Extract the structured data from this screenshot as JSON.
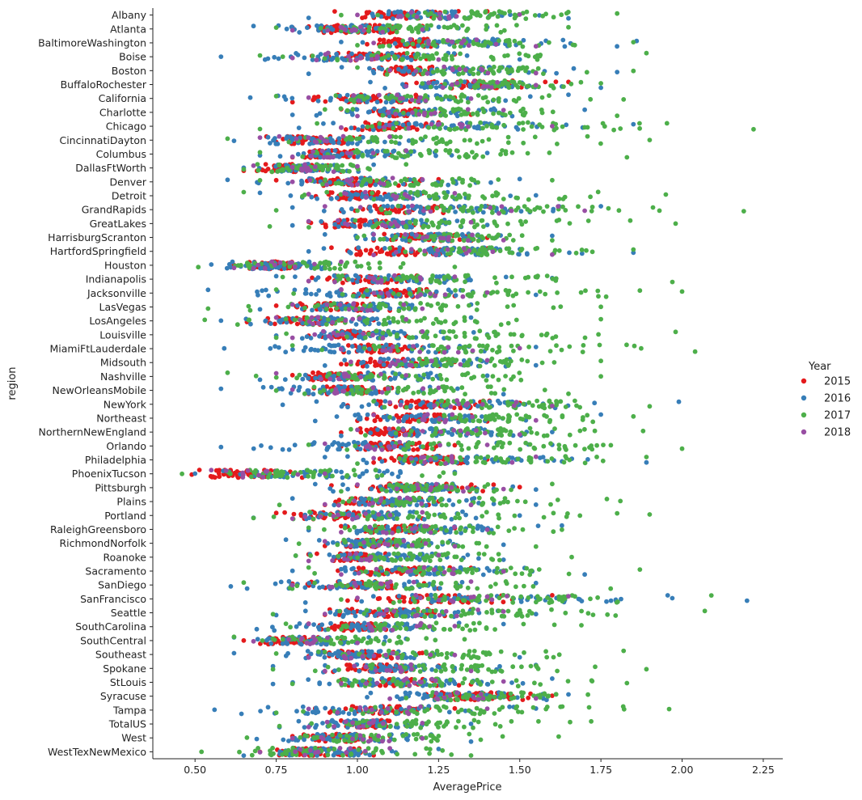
{
  "chart_data": {
    "type": "scatter",
    "subtype": "strip",
    "xlabel": "AveragePrice",
    "ylabel": "region",
    "xlim": [
      0.37,
      2.31
    ],
    "xticks": [
      "0.50",
      "0.75",
      "1.00",
      "1.25",
      "1.50",
      "1.75",
      "2.00",
      "2.25"
    ],
    "grid": false,
    "legend": {
      "title": "Year",
      "placement": "right",
      "entries": [
        {
          "label": "2015",
          "color": "#e41a1c"
        },
        {
          "label": "2016",
          "color": "#377eb8"
        },
        {
          "label": "2017",
          "color": "#4daf4a"
        },
        {
          "label": "2018",
          "color": "#984ea3"
        }
      ]
    },
    "categories": [
      "Albany",
      "Atlanta",
      "BaltimoreWashington",
      "Boise",
      "Boston",
      "BuffaloRochester",
      "California",
      "Charlotte",
      "Chicago",
      "CincinnatiDayton",
      "Columbus",
      "DallasFtWorth",
      "Denver",
      "Detroit",
      "GrandRapids",
      "GreatLakes",
      "HarrisburgScranton",
      "HartfordSpringfield",
      "Houston",
      "Indianapolis",
      "Jacksonville",
      "LasVegas",
      "LosAngeles",
      "Louisville",
      "MiamiFtLauderdale",
      "Midsouth",
      "Nashville",
      "NewOrleansMobile",
      "NewYork",
      "Northeast",
      "NorthernNewEngland",
      "Orlando",
      "Philadelphia",
      "PhoenixTucson",
      "Pittsburgh",
      "Plains",
      "Portland",
      "RaleighGreensboro",
      "RichmondNorfolk",
      "Roanoke",
      "Sacramento",
      "SanDiego",
      "SanFrancisco",
      "Seattle",
      "SouthCarolina",
      "SouthCentral",
      "Southeast",
      "Spokane",
      "StLouis",
      "Syracuse",
      "Tampa",
      "TotalUS",
      "West",
      "WestTexNewMexico"
    ],
    "ranges": [
      {
        "region": "Albany",
        "2015": [
          0.93,
          1.4
        ],
        "2016": [
          0.85,
          1.65
        ],
        "2017": [
          0.95,
          1.8
        ],
        "2018": [
          1.0,
          1.5
        ]
      },
      {
        "region": "Atlanta",
        "2015": [
          0.8,
          1.2
        ],
        "2016": [
          0.68,
          1.4
        ],
        "2017": [
          0.75,
          1.65
        ],
        "2018": [
          0.8,
          1.2
        ]
      },
      {
        "region": "BaltimoreWashington",
        "2015": [
          1.03,
          1.3
        ],
        "2016": [
          0.95,
          1.86
        ],
        "2017": [
          1.0,
          1.85
        ],
        "2018": [
          1.05,
          1.55
        ]
      },
      {
        "region": "Boise",
        "2015": [
          0.86,
          1.3
        ],
        "2016": [
          0.58,
          1.5
        ],
        "2017": [
          0.7,
          1.89
        ],
        "2018": [
          0.8,
          1.25
        ]
      },
      {
        "region": "Boston",
        "2015": [
          1.05,
          1.3
        ],
        "2016": [
          0.85,
          1.8
        ],
        "2017": [
          1.0,
          1.85
        ],
        "2018": [
          1.1,
          1.55
        ]
      },
      {
        "region": "BuffaloRochester",
        "2015": [
          1.15,
          1.65
        ],
        "2016": [
          1.04,
          1.75
        ],
        "2017": [
          1.2,
          1.75
        ],
        "2018": [
          1.15,
          1.55
        ]
      },
      {
        "region": "California",
        "2015": [
          0.8,
          1.3
        ],
        "2016": [
          0.67,
          1.65
        ],
        "2017": [
          0.75,
          1.82
        ],
        "2018": [
          0.85,
          1.35
        ]
      },
      {
        "region": "Charlotte",
        "2015": [
          0.95,
          1.35
        ],
        "2016": [
          0.8,
          1.7
        ],
        "2017": [
          0.9,
          1.8
        ],
        "2018": [
          1.0,
          1.45
        ]
      },
      {
        "region": "Chicago",
        "2015": [
          0.95,
          1.25
        ],
        "2016": [
          0.82,
          1.85
        ],
        "2017": [
          0.7,
          2.22
        ],
        "2018": [
          0.95,
          1.6
        ]
      },
      {
        "region": "CincinnatiDayton",
        "2015": [
          0.72,
          1.1
        ],
        "2016": [
          0.62,
          1.2
        ],
        "2017": [
          0.6,
          1.9
        ],
        "2018": [
          0.7,
          1.1
        ]
      },
      {
        "region": "Columbus",
        "2015": [
          0.8,
          1.1
        ],
        "2016": [
          0.7,
          1.4
        ],
        "2017": [
          0.7,
          1.83
        ],
        "2018": [
          0.8,
          1.15
        ]
      },
      {
        "region": "DallasFtWorth",
        "2015": [
          0.65,
          0.95
        ],
        "2016": [
          0.65,
          1.05
        ],
        "2017": [
          0.65,
          1.15
        ],
        "2018": [
          0.68,
          1.0
        ]
      },
      {
        "region": "Denver",
        "2015": [
          0.75,
          1.25
        ],
        "2016": [
          0.6,
          1.5
        ],
        "2017": [
          0.7,
          1.6
        ],
        "2018": [
          0.8,
          1.2
        ]
      },
      {
        "region": "Detroit",
        "2015": [
          0.85,
          1.2
        ],
        "2016": [
          0.7,
          1.55
        ],
        "2017": [
          0.65,
          1.95
        ],
        "2018": [
          0.85,
          1.3
        ]
      },
      {
        "region": "GrandRapids",
        "2015": [
          0.95,
          1.4
        ],
        "2016": [
          0.8,
          1.75
        ],
        "2017": [
          0.75,
          2.19
        ],
        "2018": [
          0.9,
          1.7
        ]
      },
      {
        "region": "GreatLakes",
        "2015": [
          0.85,
          1.2
        ],
        "2016": [
          0.8,
          1.4
        ],
        "2017": [
          0.73,
          1.98
        ],
        "2018": [
          0.85,
          1.35
        ]
      },
      {
        "region": "HarrisburgScranton",
        "2015": [
          1.05,
          1.4
        ],
        "2016": [
          0.9,
          1.6
        ],
        "2017": [
          1.0,
          1.6
        ],
        "2018": [
          1.05,
          1.45
        ]
      },
      {
        "region": "HartfordSpringfield",
        "2015": [
          0.92,
          1.4
        ],
        "2016": [
          0.85,
          1.85
        ],
        "2017": [
          1.1,
          1.85
        ],
        "2018": [
          1.05,
          1.6
        ]
      },
      {
        "region": "Houston",
        "2015": [
          0.62,
          0.9
        ],
        "2016": [
          0.55,
          1.0
        ],
        "2017": [
          0.51,
          1.3
        ],
        "2018": [
          0.62,
          0.95
        ]
      },
      {
        "region": "Indianapolis",
        "2015": [
          0.85,
          1.25
        ],
        "2016": [
          0.75,
          1.6
        ],
        "2017": [
          0.77,
          1.97
        ],
        "2018": [
          0.85,
          1.3
        ]
      },
      {
        "region": "Jacksonville",
        "2015": [
          0.95,
          1.3
        ],
        "2016": [
          0.54,
          1.55
        ],
        "2017": [
          0.75,
          2.0
        ],
        "2018": [
          0.95,
          1.4
        ]
      },
      {
        "region": "LasVegas",
        "2015": [
          0.75,
          1.1
        ],
        "2016": [
          0.7,
          1.35
        ],
        "2017": [
          0.54,
          1.75
        ],
        "2018": [
          0.8,
          1.2
        ]
      },
      {
        "region": "LosAngeles",
        "2015": [
          0.66,
          1.05
        ],
        "2016": [
          0.58,
          1.35
        ],
        "2017": [
          0.53,
          1.75
        ],
        "2018": [
          0.75,
          1.15
        ]
      },
      {
        "region": "Louisville",
        "2015": [
          0.85,
          1.15
        ],
        "2016": [
          0.75,
          1.4
        ],
        "2017": [
          0.75,
          1.98
        ],
        "2018": [
          0.8,
          1.2
        ]
      },
      {
        "region": "MiamiFtLauderdale",
        "2015": [
          0.95,
          1.25
        ],
        "2016": [
          0.59,
          1.55
        ],
        "2017": [
          0.8,
          2.04
        ],
        "2018": [
          0.95,
          1.5
        ]
      },
      {
        "region": "Midsouth",
        "2015": [
          0.95,
          1.3
        ],
        "2016": [
          0.9,
          1.55
        ],
        "2017": [
          0.98,
          1.75
        ],
        "2018": [
          0.98,
          1.4
        ]
      },
      {
        "region": "Nashville",
        "2015": [
          0.8,
          1.1
        ],
        "2016": [
          0.7,
          1.4
        ],
        "2017": [
          0.6,
          1.75
        ],
        "2018": [
          0.75,
          1.15
        ]
      },
      {
        "region": "NewOrleansMobile",
        "2015": [
          0.85,
          1.15
        ],
        "2016": [
          0.58,
          1.45
        ],
        "2017": [
          0.75,
          1.65
        ],
        "2018": [
          0.8,
          1.25
        ]
      },
      {
        "region": "NewYork",
        "2015": [
          0.97,
          1.5
        ],
        "2016": [
          0.77,
          1.99
        ],
        "2017": [
          1.05,
          1.9
        ],
        "2018": [
          1.1,
          1.6
        ]
      },
      {
        "region": "Northeast",
        "2015": [
          1.0,
          1.4
        ],
        "2016": [
          0.87,
          1.75
        ],
        "2017": [
          1.1,
          1.85
        ],
        "2018": [
          1.05,
          1.55
        ]
      },
      {
        "region": "NorthernNewEngland",
        "2015": [
          0.95,
          1.25
        ],
        "2016": [
          0.95,
          1.6
        ],
        "2017": [
          0.98,
          1.88
        ],
        "2018": [
          1.0,
          1.5
        ]
      },
      {
        "region": "Orlando",
        "2015": [
          0.95,
          1.3
        ],
        "2016": [
          0.58,
          1.6
        ],
        "2017": [
          0.85,
          2.0
        ],
        "2018": [
          0.9,
          1.4
        ]
      },
      {
        "region": "Philadelphia",
        "2015": [
          1.05,
          1.4
        ],
        "2016": [
          0.9,
          1.89
        ],
        "2017": [
          1.0,
          1.89
        ],
        "2018": [
          1.05,
          1.55
        ]
      },
      {
        "region": "PhoenixTucson",
        "2015": [
          0.49,
          0.83
        ],
        "2016": [
          0.5,
          1.3
        ],
        "2017": [
          0.46,
          1.3
        ],
        "2018": [
          0.55,
          0.9
        ]
      },
      {
        "region": "Pittsburgh",
        "2015": [
          0.92,
          1.5
        ],
        "2016": [
          0.87,
          1.55
        ],
        "2017": [
          0.95,
          1.6
        ],
        "2018": [
          1.0,
          1.45
        ]
      },
      {
        "region": "Plains",
        "2015": [
          0.9,
          1.25
        ],
        "2016": [
          0.8,
          1.55
        ],
        "2017": [
          0.76,
          1.81
        ],
        "2018": [
          0.9,
          1.35
        ]
      },
      {
        "region": "Portland",
        "2015": [
          0.75,
          1.2
        ],
        "2016": [
          0.68,
          1.5
        ],
        "2017": [
          0.68,
          1.9
        ],
        "2018": [
          0.8,
          1.2
        ]
      },
      {
        "region": "RaleighGreensboro",
        "2015": [
          0.95,
          1.3
        ],
        "2016": [
          0.85,
          1.63
        ],
        "2017": [
          0.85,
          1.63
        ],
        "2018": [
          0.95,
          1.4
        ]
      },
      {
        "region": "RichmondNorfolk",
        "2015": [
          0.9,
          1.2
        ],
        "2016": [
          0.78,
          1.45
        ],
        "2017": [
          0.82,
          1.55
        ],
        "2018": [
          0.9,
          1.3
        ]
      },
      {
        "region": "Roanoke",
        "2015": [
          0.85,
          1.15
        ],
        "2016": [
          0.81,
          1.45
        ],
        "2017": [
          0.81,
          1.66
        ],
        "2018": [
          0.85,
          1.25
        ]
      },
      {
        "region": "Sacramento",
        "2015": [
          0.94,
          1.35
        ],
        "2016": [
          0.8,
          1.7
        ],
        "2017": [
          0.85,
          1.87
        ],
        "2018": [
          0.95,
          1.45
        ]
      },
      {
        "region": "SanDiego",
        "2015": [
          0.8,
          1.25
        ],
        "2016": [
          0.61,
          1.55
        ],
        "2017": [
          0.65,
          1.78
        ],
        "2018": [
          0.8,
          1.35
        ]
      },
      {
        "region": "SanFrancisco",
        "2015": [
          0.97,
          1.6
        ],
        "2016": [
          0.84,
          2.2
        ],
        "2017": [
          0.95,
          2.09
        ],
        "2018": [
          1.0,
          1.65
        ]
      },
      {
        "region": "Seattle",
        "2015": [
          0.9,
          1.35
        ],
        "2016": [
          0.75,
          1.55
        ],
        "2017": [
          0.74,
          2.07
        ],
        "2018": [
          0.9,
          1.45
        ]
      },
      {
        "region": "SouthCarolina",
        "2015": [
          0.85,
          1.2
        ],
        "2016": [
          0.69,
          1.45
        ],
        "2017": [
          0.78,
          1.69
        ],
        "2018": [
          0.85,
          1.3
        ]
      },
      {
        "region": "SouthCentral",
        "2015": [
          0.65,
          0.95
        ],
        "2016": [
          0.62,
          1.15
        ],
        "2017": [
          0.62,
          1.33
        ],
        "2018": [
          0.68,
          1.0
        ]
      },
      {
        "region": "Southeast",
        "2015": [
          0.85,
          1.2
        ],
        "2016": [
          0.62,
          1.5
        ],
        "2017": [
          0.75,
          1.82
        ],
        "2018": [
          0.85,
          1.3
        ]
      },
      {
        "region": "Spokane",
        "2015": [
          0.9,
          1.25
        ],
        "2016": [
          0.74,
          1.55
        ],
        "2017": [
          0.74,
          1.89
        ],
        "2018": [
          0.9,
          1.35
        ]
      },
      {
        "region": "StLouis",
        "2015": [
          0.95,
          1.35
        ],
        "2016": [
          0.74,
          1.6
        ],
        "2017": [
          0.8,
          1.83
        ],
        "2018": [
          0.95,
          1.45
        ]
      },
      {
        "region": "Syracuse",
        "2015": [
          1.15,
          1.6
        ],
        "2016": [
          1.03,
          1.65
        ],
        "2017": [
          1.15,
          1.71
        ],
        "2018": [
          1.1,
          1.55
        ]
      },
      {
        "region": "Tampa",
        "2015": [
          0.87,
          1.3
        ],
        "2016": [
          0.56,
          1.55
        ],
        "2017": [
          0.75,
          1.96
        ],
        "2018": [
          0.85,
          1.4
        ]
      },
      {
        "region": "TotalUS",
        "2015": [
          0.95,
          1.15
        ],
        "2016": [
          0.76,
          1.35
        ],
        "2017": [
          0.76,
          1.72
        ],
        "2018": [
          0.85,
          1.2
        ]
      },
      {
        "region": "West",
        "2015": [
          0.8,
          1.1
        ],
        "2016": [
          0.69,
          1.35
        ],
        "2017": [
          0.66,
          1.62
        ],
        "2018": [
          0.8,
          1.2
        ]
      },
      {
        "region": "WestTexNewMexico",
        "2015": [
          0.7,
          1.05
        ],
        "2016": [
          0.65,
          1.25
        ],
        "2017": [
          0.52,
          1.35
        ],
        "2018": [
          0.7,
          1.1
        ]
      }
    ]
  }
}
